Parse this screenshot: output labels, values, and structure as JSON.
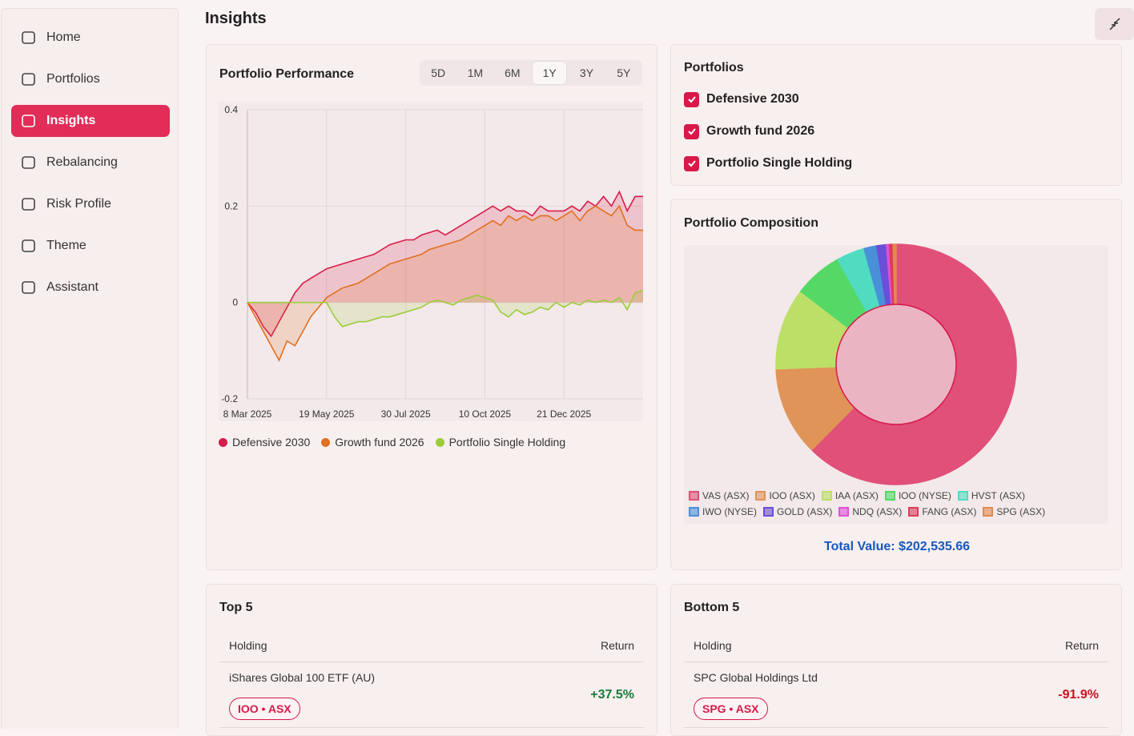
{
  "sidebar": {
    "items": [
      "Home",
      "Portfolios",
      "Insights",
      "Rebalancing",
      "Risk Profile",
      "Theme",
      "Assistant"
    ]
  },
  "page": {
    "title": "Insights"
  },
  "ranges": {
    "options": [
      "5D",
      "1M",
      "6M",
      "1Y",
      "3Y",
      "5Y"
    ],
    "selected": "1Y"
  },
  "chart_data": [
    {
      "type": "line",
      "title": "Portfolio Performance",
      "categories": [
        "8 Mar 2025",
        null,
        null,
        null,
        null,
        null,
        null,
        null,
        null,
        null,
        "19 May 2025",
        null,
        null,
        null,
        null,
        null,
        null,
        null,
        null,
        null,
        "30 Jul 2025",
        null,
        null,
        null,
        null,
        null,
        null,
        null,
        null,
        null,
        "10 Oct 2025",
        null,
        null,
        null,
        null,
        null,
        null,
        null,
        null,
        null,
        "21 Dec 2025",
        null,
        null,
        null,
        null,
        null,
        null,
        null,
        null,
        null,
        null
      ],
      "ylim": [
        -0.2,
        0.4
      ],
      "yticks": [
        -0.2,
        0,
        0.2,
        0.4
      ],
      "grid": true,
      "series": [
        {
          "name": "Defensive 2030",
          "color": "#d81b4a",
          "values": [
            0,
            -0.02,
            -0.05,
            -0.07,
            -0.04,
            -0.01,
            0.02,
            0.04,
            0.05,
            0.06,
            0.07,
            0.075,
            0.08,
            0.085,
            0.09,
            0.095,
            0.1,
            0.11,
            0.12,
            0.125,
            0.13,
            0.13,
            0.14,
            0.145,
            0.15,
            0.14,
            0.15,
            0.16,
            0.17,
            0.18,
            0.19,
            0.2,
            0.19,
            0.2,
            0.19,
            0.19,
            0.18,
            0.2,
            0.19,
            0.19,
            0.19,
            0.2,
            0.19,
            0.21,
            0.2,
            0.22,
            0.2,
            0.23,
            0.19,
            0.22,
            0.22
          ]
        },
        {
          "name": "Growth fund 2026",
          "color": "#e07020",
          "values": [
            0,
            -0.03,
            -0.06,
            -0.09,
            -0.12,
            -0.08,
            -0.09,
            -0.06,
            -0.03,
            -0.01,
            0.01,
            0.02,
            0.03,
            0.035,
            0.04,
            0.05,
            0.06,
            0.07,
            0.08,
            0.085,
            0.09,
            0.095,
            0.1,
            0.11,
            0.115,
            0.12,
            0.125,
            0.13,
            0.14,
            0.15,
            0.16,
            0.17,
            0.16,
            0.18,
            0.17,
            0.18,
            0.17,
            0.18,
            0.18,
            0.17,
            0.18,
            0.19,
            0.17,
            0.19,
            0.2,
            0.19,
            0.18,
            0.2,
            0.16,
            0.15,
            0.15
          ]
        },
        {
          "name": "Portfolio Single Holding",
          "color": "#9ccc3c",
          "values": [
            0,
            0,
            0,
            0,
            0,
            0,
            0,
            0,
            0,
            0,
            0,
            -0.03,
            -0.05,
            -0.045,
            -0.04,
            -0.04,
            -0.035,
            -0.03,
            -0.03,
            -0.025,
            -0.02,
            -0.015,
            -0.01,
            0,
            0.005,
            0,
            -0.005,
            0.005,
            0.01,
            0.015,
            0.01,
            0.005,
            -0.02,
            -0.03,
            -0.015,
            -0.025,
            -0.02,
            -0.01,
            -0.015,
            0,
            -0.01,
            0,
            -0.005,
            0.005,
            0,
            0.005,
            0,
            0.01,
            -0.015,
            0.02,
            0.025
          ]
        }
      ]
    },
    {
      "type": "pie",
      "title": "Portfolio Composition",
      "categories": [
        "VAS (ASX)",
        "IOO (ASX)",
        "IAA (ASX)",
        "IOO (NYSE)",
        "HVST (ASX)",
        "IWO (NYSE)",
        "GOLD (ASX)",
        "NDQ (ASX)",
        "FANG (ASX)",
        "SPG (ASX)"
      ],
      "values": [
        62.4,
        12,
        11,
        6.5,
        3.8,
        1.7,
        1.3,
        0.4,
        0.5,
        0.4
      ],
      "colors": [
        "#e05078",
        "#e09458",
        "#bcdf68",
        "#55d866",
        "#50dcc0",
        "#4a90d9",
        "#6a4fd8",
        "#e050d8",
        "#e03a5a",
        "#e08a50"
      ],
      "total": "Total Value: $202,535.66"
    }
  ],
  "portfolios": {
    "title": "Portfolios",
    "items": [
      "Defensive 2030",
      "Growth fund 2026",
      "Portfolio Single Holding"
    ]
  },
  "top": {
    "title": "Top 5",
    "headers": [
      "Holding",
      "Return"
    ],
    "rows": [
      {
        "name": "iShares Global 100 ETF (AU)",
        "tag": "IOO • ASX",
        "return": "+37.5%"
      }
    ]
  },
  "bottom": {
    "title": "Bottom 5",
    "headers": [
      "Holding",
      "Return"
    ],
    "rows": [
      {
        "name": "SPC Global Holdings Ltd",
        "tag": "SPG • ASX",
        "return": "-91.9%"
      }
    ]
  }
}
